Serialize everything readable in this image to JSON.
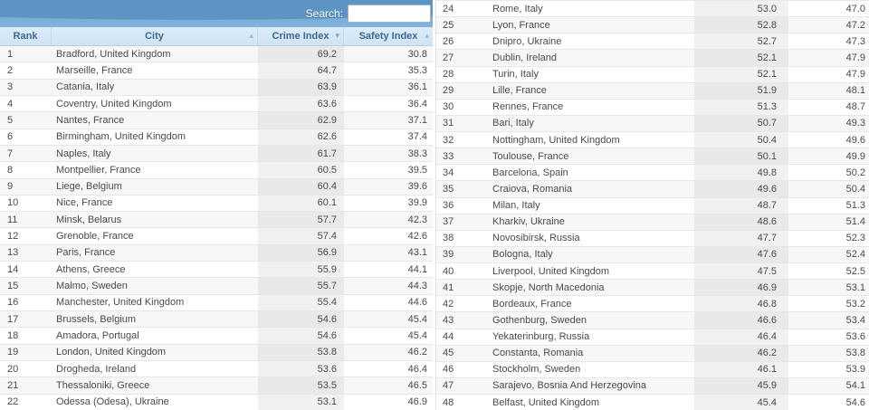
{
  "search": {
    "label": "Search:",
    "value": ""
  },
  "columns": [
    {
      "label": "Rank",
      "sort_icon": ""
    },
    {
      "label": "City",
      "sort_icon": "▴"
    },
    {
      "label": "Crime Index",
      "sort_icon": "▾"
    },
    {
      "label": "Safety Index",
      "sort_icon": "▴"
    }
  ],
  "colors": {
    "header_blue_top": "#5d94c4",
    "header_blue_bottom": "#81b3dd",
    "subheader_bg": "#d5e8f8",
    "subheader_text": "#40688f",
    "stripe_bg": "#f7f7f7",
    "sorted_col_bg": "#f1f1f1",
    "sorted_col_stripe_bg": "#e9e9e9",
    "row_text": "#4a4a4a"
  },
  "left_rows": [
    {
      "rank": "1",
      "city": "Bradford, United Kingdom",
      "crime": "69.2",
      "safety": "30.8"
    },
    {
      "rank": "2",
      "city": "Marseille, France",
      "crime": "64.7",
      "safety": "35.3"
    },
    {
      "rank": "3",
      "city": "Catania, Italy",
      "crime": "63.9",
      "safety": "36.1"
    },
    {
      "rank": "4",
      "city": "Coventry, United Kingdom",
      "crime": "63.6",
      "safety": "36.4"
    },
    {
      "rank": "5",
      "city": "Nantes, France",
      "crime": "62.9",
      "safety": "37.1"
    },
    {
      "rank": "6",
      "city": "Birmingham, United Kingdom",
      "crime": "62.6",
      "safety": "37.4"
    },
    {
      "rank": "7",
      "city": "Naples, Italy",
      "crime": "61.7",
      "safety": "38.3"
    },
    {
      "rank": "8",
      "city": "Montpellier, France",
      "crime": "60.5",
      "safety": "39.5"
    },
    {
      "rank": "9",
      "city": "Liege, Belgium",
      "crime": "60.4",
      "safety": "39.6"
    },
    {
      "rank": "10",
      "city": "Nice, France",
      "crime": "60.1",
      "safety": "39.9"
    },
    {
      "rank": "11",
      "city": "Minsk, Belarus",
      "crime": "57.7",
      "safety": "42.3"
    },
    {
      "rank": "12",
      "city": "Grenoble, France",
      "crime": "57.4",
      "safety": "42.6"
    },
    {
      "rank": "13",
      "city": "Paris, France",
      "crime": "56.9",
      "safety": "43.1"
    },
    {
      "rank": "14",
      "city": "Athens, Greece",
      "crime": "55.9",
      "safety": "44.1"
    },
    {
      "rank": "15",
      "city": "Malmo, Sweden",
      "crime": "55.7",
      "safety": "44.3"
    },
    {
      "rank": "16",
      "city": "Manchester, United Kingdom",
      "crime": "55.4",
      "safety": "44.6"
    },
    {
      "rank": "17",
      "city": "Brussels, Belgium",
      "crime": "54.6",
      "safety": "45.4"
    },
    {
      "rank": "18",
      "city": "Amadora, Portugal",
      "crime": "54.6",
      "safety": "45.4"
    },
    {
      "rank": "19",
      "city": "London, United Kingdom",
      "crime": "53.8",
      "safety": "46.2"
    },
    {
      "rank": "20",
      "city": "Drogheda, Ireland",
      "crime": "53.6",
      "safety": "46.4"
    },
    {
      "rank": "21",
      "city": "Thessaloniki, Greece",
      "crime": "53.5",
      "safety": "46.5"
    },
    {
      "rank": "22",
      "city": "Odessa (Odesa), Ukraine",
      "crime": "53.1",
      "safety": "46.9"
    }
  ],
  "right_rows": [
    {
      "rank": "24",
      "city": "Rome, Italy",
      "crime": "53.0",
      "safety": "47.0"
    },
    {
      "rank": "25",
      "city": "Lyon, France",
      "crime": "52.8",
      "safety": "47.2"
    },
    {
      "rank": "26",
      "city": "Dnipro, Ukraine",
      "crime": "52.7",
      "safety": "47.3"
    },
    {
      "rank": "27",
      "city": "Dublin, Ireland",
      "crime": "52.1",
      "safety": "47.9"
    },
    {
      "rank": "28",
      "city": "Turin, Italy",
      "crime": "52.1",
      "safety": "47.9"
    },
    {
      "rank": "29",
      "city": "Lille, France",
      "crime": "51.9",
      "safety": "48.1"
    },
    {
      "rank": "30",
      "city": "Rennes, France",
      "crime": "51.3",
      "safety": "48.7"
    },
    {
      "rank": "31",
      "city": "Bari, Italy",
      "crime": "50.7",
      "safety": "49.3"
    },
    {
      "rank": "32",
      "city": "Nottingham, United Kingdom",
      "crime": "50.4",
      "safety": "49.6"
    },
    {
      "rank": "33",
      "city": "Toulouse, France",
      "crime": "50.1",
      "safety": "49.9"
    },
    {
      "rank": "34",
      "city": "Barcelona, Spain",
      "crime": "49.8",
      "safety": "50.2"
    },
    {
      "rank": "35",
      "city": "Craiova, Romania",
      "crime": "49.6",
      "safety": "50.4"
    },
    {
      "rank": "36",
      "city": "Milan, Italy",
      "crime": "48.7",
      "safety": "51.3"
    },
    {
      "rank": "37",
      "city": "Kharkiv, Ukraine",
      "crime": "48.6",
      "safety": "51.4"
    },
    {
      "rank": "38",
      "city": "Novosibirsk, Russia",
      "crime": "47.7",
      "safety": "52.3"
    },
    {
      "rank": "39",
      "city": "Bologna, Italy",
      "crime": "47.6",
      "safety": "52.4"
    },
    {
      "rank": "40",
      "city": "Liverpool, United Kingdom",
      "crime": "47.5",
      "safety": "52.5"
    },
    {
      "rank": "41",
      "city": "Skopje, North Macedonia",
      "crime": "46.9",
      "safety": "53.1"
    },
    {
      "rank": "42",
      "city": "Bordeaux, France",
      "crime": "46.8",
      "safety": "53.2"
    },
    {
      "rank": "43",
      "city": "Gothenburg, Sweden",
      "crime": "46.6",
      "safety": "53.4"
    },
    {
      "rank": "44",
      "city": "Yekaterinburg, Russia",
      "crime": "46.4",
      "safety": "53.6"
    },
    {
      "rank": "45",
      "city": "Constanta, Romania",
      "crime": "46.2",
      "safety": "53.8"
    },
    {
      "rank": "46",
      "city": "Stockholm, Sweden",
      "crime": "46.1",
      "safety": "53.9"
    },
    {
      "rank": "47",
      "city": "Sarajevo, Bosnia And Herzegovina",
      "crime": "45.9",
      "safety": "54.1"
    },
    {
      "rank": "48",
      "city": "Belfast, United Kingdom",
      "crime": "45.4",
      "safety": "54.6"
    }
  ]
}
